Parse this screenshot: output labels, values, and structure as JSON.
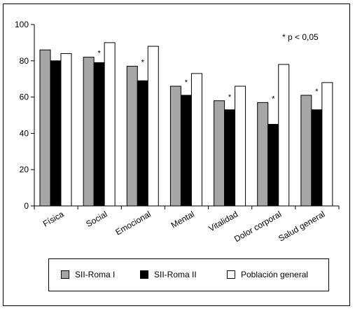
{
  "chart_data": {
    "type": "bar",
    "categories": [
      "Física",
      "Social",
      "Emocional",
      "Mental",
      "Vitalidad",
      "Dolor corporal",
      "Salud general"
    ],
    "series": [
      {
        "name": "SII-Roma I",
        "values": [
          86,
          82,
          77,
          66,
          58,
          57,
          61
        ],
        "color": "#a6a6a6"
      },
      {
        "name": "SII-Roma II",
        "values": [
          80,
          79,
          69,
          61,
          53,
          45,
          53
        ],
        "color": "#000000"
      },
      {
        "name": "Población general",
        "values": [
          84,
          90,
          88,
          73,
          66,
          78,
          68
        ],
        "color": "#ffffff"
      }
    ],
    "significant": [
      false,
      true,
      true,
      true,
      true,
      true,
      true
    ],
    "significance_marker": "*",
    "annotation": "* p < 0,05",
    "ylim": [
      0,
      100
    ],
    "yticks": [
      0,
      20,
      40,
      60,
      80,
      100
    ],
    "legend_position": "bottom"
  }
}
